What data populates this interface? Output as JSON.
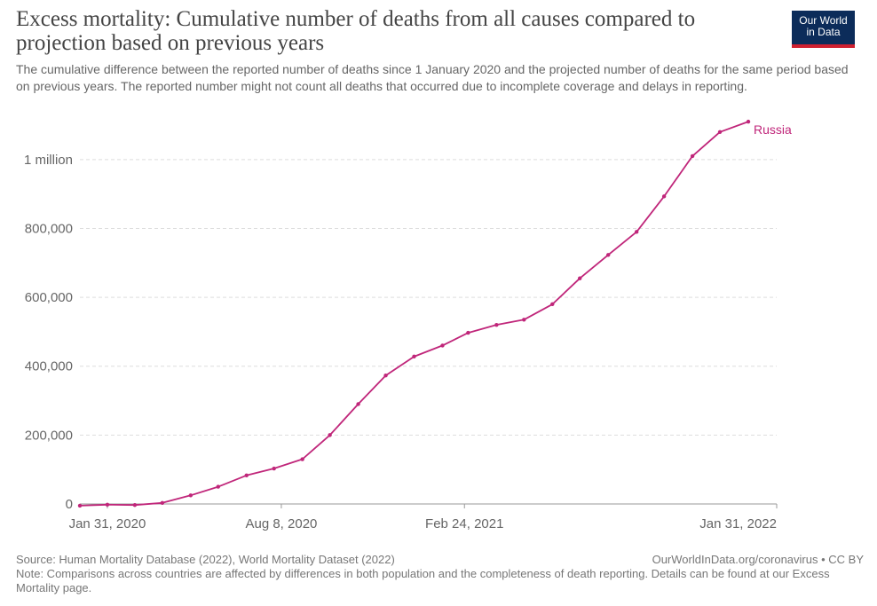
{
  "header": {
    "title": "Excess mortality: Cumulative number of deaths from all causes compared to projection based on previous years",
    "subtitle": "The cumulative difference between the reported number of deaths since 1 January 2020 and the projected number of deaths for the same period based on previous years. The reported number might not count all deaths that occurred due to incomplete coverage and delays in reporting.",
    "logo_line1": "Our World",
    "logo_line2": "in Data"
  },
  "colors": {
    "series": "#c0267a",
    "grid": "#dddddd",
    "axis": "#666666",
    "logo_bg": "#0c2c5a",
    "logo_accent": "#cf2030"
  },
  "chart_data": {
    "type": "line",
    "title": "",
    "xlabel": "",
    "ylabel": "",
    "grid": true,
    "xlim": [
      "2020-01-01",
      "2022-01-31"
    ],
    "ylim": [
      0,
      1100000
    ],
    "y_ticks": [
      {
        "value": 0,
        "label": "0"
      },
      {
        "value": 200000,
        "label": "200,000"
      },
      {
        "value": 400000,
        "label": "400,000"
      },
      {
        "value": 600000,
        "label": "600,000"
      },
      {
        "value": 800000,
        "label": "800,000"
      },
      {
        "value": 1000000,
        "label": "1 million"
      }
    ],
    "x_ticks": [
      {
        "value": "2020-01-31",
        "label": "Jan 31, 2020"
      },
      {
        "value": "2020-08-08",
        "label": "Aug 8, 2020"
      },
      {
        "value": "2021-02-24",
        "label": "Feb 24, 2021"
      },
      {
        "value": "2022-01-31",
        "label": "Jan 31, 2022"
      }
    ],
    "series": [
      {
        "name": "Russia",
        "points": [
          {
            "x": "2020-01-01",
            "y": -5000
          },
          {
            "x": "2020-01-31",
            "y": -2000
          },
          {
            "x": "2020-03-01",
            "y": -3000
          },
          {
            "x": "2020-03-31",
            "y": 3000
          },
          {
            "x": "2020-05-01",
            "y": 25000
          },
          {
            "x": "2020-05-31",
            "y": 50000
          },
          {
            "x": "2020-07-01",
            "y": 83000
          },
          {
            "x": "2020-07-31",
            "y": 103000
          },
          {
            "x": "2020-08-31",
            "y": 130000
          },
          {
            "x": "2020-09-30",
            "y": 200000
          },
          {
            "x": "2020-10-31",
            "y": 290000
          },
          {
            "x": "2020-11-30",
            "y": 373000
          },
          {
            "x": "2020-12-31",
            "y": 428000
          },
          {
            "x": "2021-01-31",
            "y": 460000
          },
          {
            "x": "2021-02-28",
            "y": 497000
          },
          {
            "x": "2021-03-31",
            "y": 520000
          },
          {
            "x": "2021-04-30",
            "y": 535000
          },
          {
            "x": "2021-05-31",
            "y": 580000
          },
          {
            "x": "2021-06-30",
            "y": 655000
          },
          {
            "x": "2021-07-31",
            "y": 723000
          },
          {
            "x": "2021-08-31",
            "y": 790000
          },
          {
            "x": "2021-09-30",
            "y": 893000
          },
          {
            "x": "2021-10-31",
            "y": 1010000
          },
          {
            "x": "2021-11-30",
            "y": 1080000
          },
          {
            "x": "2021-12-31",
            "y": 1110000
          }
        ]
      }
    ]
  },
  "footer": {
    "source": "Source: Human Mortality Database (2022), World Mortality Dataset (2022)",
    "owid_link": "OurWorldInData.org/coronavirus • CC BY",
    "note": "Note: Comparisons across countries are affected by differences in both population and the completeness of death reporting. Details can be found at our Excess Mortality page."
  }
}
